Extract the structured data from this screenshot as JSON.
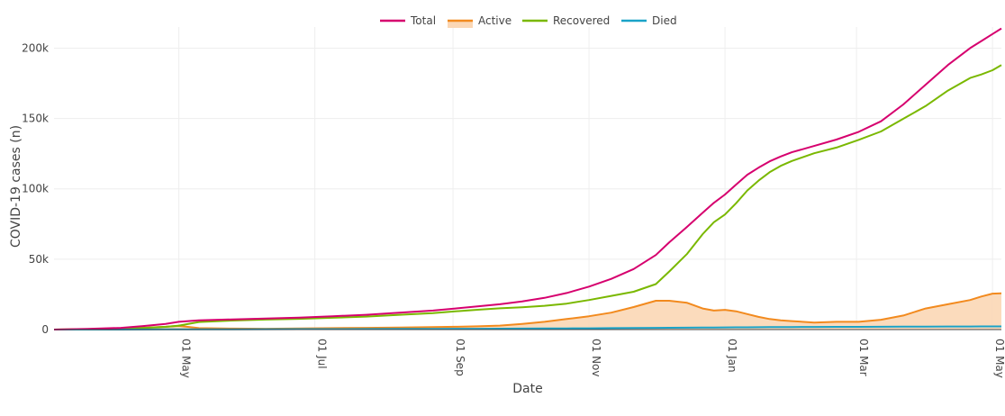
{
  "chart_data": {
    "type": "line",
    "title": "",
    "xlabel": "Date",
    "ylabel": "COVID-19 cases (n)",
    "x_tick_labels": [
      "01 May",
      "01 Jul",
      "01 Sep",
      "01 Nov",
      "01 Jan",
      "01 Mar",
      "01 May"
    ],
    "x_tick_days": [
      36,
      97,
      159,
      220,
      281,
      340,
      401
    ],
    "x_range_days": [
      -20,
      405
    ],
    "y_tick_labels": [
      "0",
      "50k",
      "100k",
      "150k",
      "200k"
    ],
    "y_ticks": [
      0,
      50000,
      100000,
      150000,
      200000
    ],
    "ylim": [
      0,
      215000
    ],
    "legend_position": "top-center",
    "grid": true,
    "x_days": [
      -20,
      -5,
      10,
      20,
      30,
      36,
      45,
      60,
      75,
      90,
      105,
      120,
      135,
      150,
      160,
      170,
      180,
      190,
      200,
      210,
      220,
      230,
      240,
      250,
      256,
      264,
      271,
      276,
      281,
      286,
      291,
      296,
      301,
      306,
      311,
      321,
      331,
      341,
      351,
      361,
      371,
      381,
      391,
      396,
      401,
      405
    ],
    "series": [
      {
        "name": "Total",
        "color": "#d6006e",
        "fill": false,
        "values": [
          0,
          500,
          1200,
          2500,
          4000,
          5500,
          6500,
          7200,
          7800,
          8500,
          9500,
          10500,
          12000,
          13500,
          15000,
          16500,
          18000,
          20000,
          22500,
          26000,
          30500,
          36000,
          43000,
          53000,
          62000,
          73000,
          83000,
          90000,
          96000,
          103000,
          110000,
          115000,
          119500,
          123000,
          126000,
          130500,
          135000,
          140500,
          148000,
          160000,
          174000,
          188000,
          200000,
          205000,
          210000,
          214000
        ]
      },
      {
        "name": "Active",
        "color": "#f28a1e",
        "fill": true,
        "fill_color": "#fbd7b5",
        "values": [
          0,
          300,
          700,
          1300,
          2000,
          2600,
          1000,
          700,
          600,
          800,
          1000,
          1200,
          1400,
          1700,
          2000,
          2300,
          2800,
          4000,
          5500,
          7500,
          9500,
          12000,
          16000,
          20500,
          20500,
          19000,
          15000,
          13500,
          14000,
          13000,
          11000,
          9000,
          7500,
          6500,
          6000,
          5000,
          5500,
          5500,
          7000,
          10000,
          15000,
          18000,
          21000,
          23500,
          25500,
          25700
        ]
      },
      {
        "name": "Recovered",
        "color": "#7ab800",
        "fill": false,
        "values": [
          0,
          200,
          500,
          1100,
          1900,
          2800,
          5400,
          6400,
          7100,
          7600,
          8400,
          9200,
          10500,
          11700,
          12900,
          14100,
          15100,
          15900,
          16900,
          18400,
          21000,
          23900,
          26900,
          32300,
          41300,
          53800,
          67800,
          76300,
          81800,
          89800,
          98800,
          105800,
          111800,
          116300,
          119800,
          125300,
          129300,
          134800,
          140800,
          149800,
          158800,
          169800,
          178800,
          181300,
          184300,
          188000
        ]
      },
      {
        "name": "Died",
        "color": "#1aa3c8",
        "fill": false,
        "values": [
          0,
          10,
          30,
          60,
          100,
          100,
          150,
          200,
          250,
          300,
          350,
          400,
          450,
          500,
          550,
          600,
          650,
          700,
          750,
          800,
          900,
          1000,
          1100,
          1200,
          1260,
          1350,
          1420,
          1480,
          1530,
          1580,
          1630,
          1680,
          1720,
          1760,
          1800,
          1850,
          1900,
          1950,
          2000,
          2050,
          2100,
          2150,
          2200,
          2230,
          2250,
          2270
        ]
      }
    ]
  }
}
